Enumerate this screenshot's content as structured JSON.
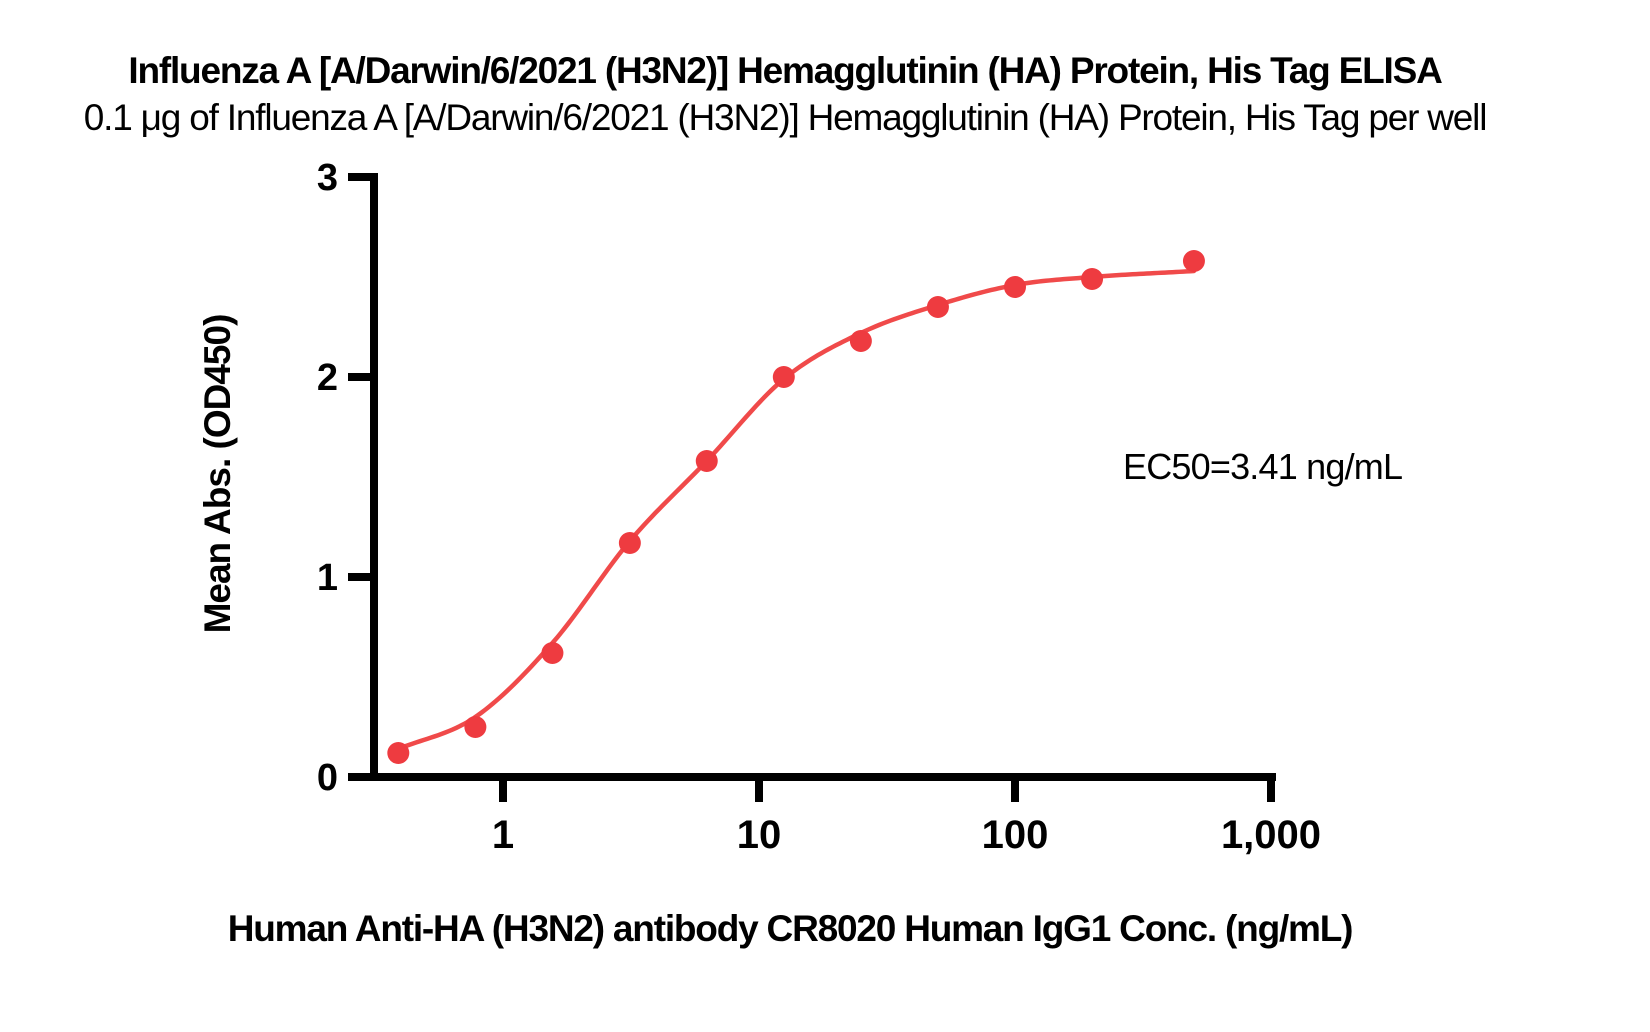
{
  "chart_data": {
    "type": "scatter",
    "title": "Influenza A [A/Darwin/6/2021 (H3N2)] Hemagglutinin (HA) Protein, His Tag ELISA",
    "subtitle": "0.1 μg of Influenza A [A/Darwin/6/2021 (H3N2)] Hemagglutinin (HA) Protein, His Tag per well",
    "xlabel": "Human Anti-HA (H3N2) antibody CR8020 Human IgG1 Conc. (ng/mL)",
    "ylabel": "Mean Abs. (OD450)",
    "x_scale": "log10",
    "ylim": [
      0,
      3
    ],
    "grid": "off",
    "legend": "none",
    "x_ticks": [
      {
        "value": 1,
        "label": "1"
      },
      {
        "value": 10,
        "label": "10"
      },
      {
        "value": 100,
        "label": "100"
      },
      {
        "value": 1000,
        "label": "1,000"
      }
    ],
    "y_ticks": [
      {
        "value": 0,
        "label": "0"
      },
      {
        "value": 1,
        "label": "1"
      },
      {
        "value": 2,
        "label": "2"
      },
      {
        "value": 3,
        "label": "3"
      }
    ],
    "series": [
      {
        "name": "Human Anti-HA (H3N2) antibody CR8020 Human IgG1",
        "x": [
          0.39,
          0.78,
          1.56,
          3.13,
          6.25,
          12.5,
          25,
          50,
          100,
          200,
          500
        ],
        "y": [
          0.12,
          0.25,
          0.62,
          1.17,
          1.58,
          2.0,
          2.18,
          2.35,
          2.45,
          2.49,
          2.58
        ],
        "marker": "circle",
        "color": "#EE3B40"
      }
    ],
    "fit_curve": {
      "model": "4PL sigmoidal fit",
      "x": [
        0.39,
        0.78,
        1.56,
        3.13,
        6.25,
        12.5,
        25,
        50,
        100,
        200,
        500
      ],
      "y": [
        0.14,
        0.3,
        0.67,
        1.18,
        1.58,
        1.99,
        2.22,
        2.36,
        2.46,
        2.5,
        2.53
      ],
      "color": "#F04A4A"
    },
    "annotation": {
      "text": "EC50=3.41 ng/mL"
    },
    "colors": {
      "accent": "#EE3B40",
      "axis": "#000000",
      "text": "#000000",
      "background": "#FFFFFF"
    }
  }
}
